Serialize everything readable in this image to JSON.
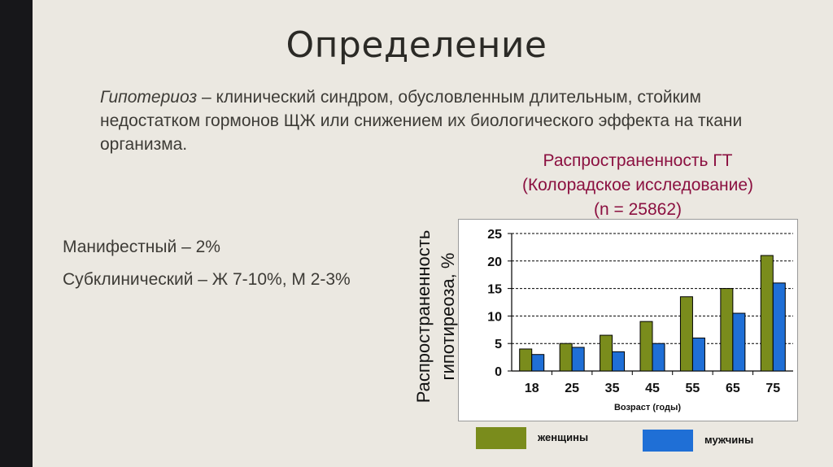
{
  "slide": {
    "title": "Определение",
    "definition_term": "Гипотериоз",
    "definition_text": " – клинический синдром, обусловленным длительным, стойким недостатком гормонов ЩЖ или снижением их биологического эффекта на ткани организма.",
    "manifest": "Манифестный – 2%",
    "subclinical": "Субклинический – Ж 7-10%, М 2-3%"
  },
  "colors": {
    "women": "#7a8c1c",
    "men": "#1f6fd6",
    "title_accent": "#8b1040",
    "sidebar": "#17171a"
  },
  "chart_data": {
    "type": "bar",
    "title_lines": [
      "Распространенность ГТ",
      "(Колорадское исследование)",
      "(n = 25862)"
    ],
    "ylabel_lines": [
      "Распространенность",
      "гипотиреоза, %"
    ],
    "xlabel": "Возраст (годы)",
    "categories": [
      "18",
      "25",
      "35",
      "45",
      "55",
      "65",
      "75"
    ],
    "ylim": [
      0,
      25
    ],
    "yticks": [
      0,
      5,
      10,
      15,
      20,
      25
    ],
    "grid": true,
    "series": [
      {
        "name": "женщины",
        "color": "#7a8c1c",
        "values": [
          4,
          5,
          6.5,
          9,
          13.5,
          15,
          21
        ]
      },
      {
        "name": "мужчины",
        "color": "#1f6fd6",
        "values": [
          3,
          4.3,
          3.5,
          5,
          6,
          10.5,
          16
        ]
      }
    ],
    "legend_position": "bottom"
  }
}
